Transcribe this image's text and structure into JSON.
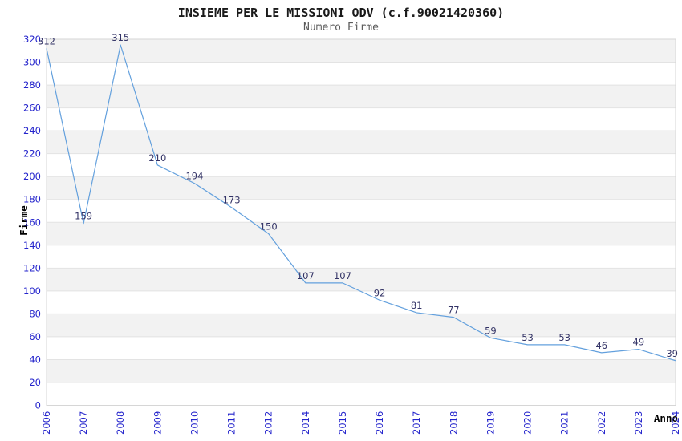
{
  "header": {
    "title": "INSIEME PER LE MISSIONI ODV (c.f.90021420360)",
    "subtitle": "Numero Firme"
  },
  "chart_data": {
    "type": "line",
    "title": "INSIEME PER LE MISSIONI ODV (c.f.90021420360)",
    "subtitle": "Numero Firme",
    "xlabel": "Anno",
    "ylabel": "Firme",
    "categories": [
      "2006",
      "2007",
      "2008",
      "2009",
      "2010",
      "2011",
      "2012",
      "2014",
      "2015",
      "2016",
      "2017",
      "2018",
      "2019",
      "2020",
      "2021",
      "2022",
      "2023",
      "2024"
    ],
    "values": [
      312,
      159,
      315,
      210,
      194,
      173,
      150,
      107,
      107,
      92,
      81,
      77,
      59,
      53,
      53,
      46,
      49,
      39
    ],
    "ylim": [
      0,
      320
    ],
    "ytick_step": 20,
    "grid": "horizontal-alternating-bands",
    "legend": "none",
    "data_labels": true,
    "x_tick_rotation": -90
  },
  "colors": {
    "line": "#63a0dd",
    "data_label": "#333366",
    "tick_label": "#2424cc",
    "band_gray": "#f2f2f2",
    "band_white": "#ffffff",
    "gridline": "#e3e3e3",
    "plot_border": "#d6d6d6",
    "title": "#1a1a1a",
    "subtitle": "#5a5a5a",
    "axis_label": "#000000",
    "background": "#ffffff"
  }
}
